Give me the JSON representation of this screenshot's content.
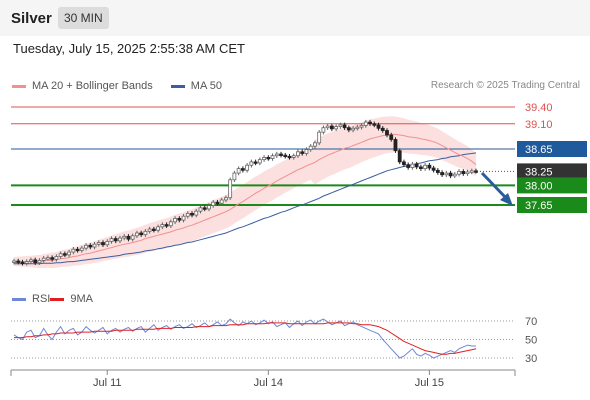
{
  "header": {
    "title": "Silver",
    "timeframe": "30 MIN"
  },
  "datetime": "Tuesday, July 15, 2025 2:55:38 AM CET",
  "legend": {
    "ma_bb_label": "MA 20 + Bollinger Bands",
    "ma50_label": "MA 50",
    "credit": "Research © 2025 Trading Central"
  },
  "rsi_legend": {
    "rsi_label": "RSI",
    "ma9_label": "9MA"
  },
  "colors": {
    "resistance": "#e05050",
    "pivot": "#1f5a9c",
    "support": "#1a8a1a",
    "current": "#333333",
    "arrow": "#2b5c9a",
    "ma20": "#f29090",
    "bb_fill": "#fbd4d4",
    "ma50": "#3a5e9e",
    "candle_up": "#666666",
    "candle_down": "#222222",
    "rsi": "#6e87d8",
    "rsi_ma": "#e02020"
  },
  "chart_data": {
    "type": "candlestick",
    "price_levels": [
      {
        "label": "39.40",
        "value": 39.4,
        "kind": "resistance"
      },
      {
        "label": "39.10",
        "value": 39.1,
        "kind": "resistance"
      },
      {
        "label": "38.65",
        "value": 38.65,
        "kind": "pivot"
      },
      {
        "label": "38.25",
        "value": 38.25,
        "kind": "current"
      },
      {
        "label": "38.00",
        "value": 38.0,
        "kind": "support"
      },
      {
        "label": "37.65",
        "value": 37.65,
        "kind": "support"
      }
    ],
    "x_labels": [
      {
        "label": "Jul 11",
        "bar": 22
      },
      {
        "label": "Jul 14",
        "bar": 60
      },
      {
        "label": "Jul 15",
        "bar": 98
      }
    ],
    "close": [
      36.65,
      36.63,
      36.61,
      36.64,
      36.67,
      36.62,
      36.66,
      36.7,
      36.71,
      36.68,
      36.73,
      36.78,
      36.76,
      36.81,
      36.86,
      36.84,
      36.88,
      36.93,
      36.9,
      36.95,
      36.98,
      36.94,
      37.0,
      37.05,
      37.01,
      37.06,
      37.09,
      37.04,
      37.1,
      37.15,
      37.12,
      37.18,
      37.22,
      37.2,
      37.26,
      37.3,
      37.28,
      37.35,
      37.41,
      37.38,
      37.45,
      37.5,
      37.47,
      37.54,
      37.6,
      37.58,
      37.64,
      37.7,
      37.68,
      37.74,
      37.78,
      38.1,
      38.22,
      38.3,
      38.27,
      38.36,
      38.42,
      38.4,
      38.46,
      38.5,
      38.48,
      38.53,
      38.56,
      38.54,
      38.52,
      38.5,
      38.53,
      38.6,
      38.57,
      38.64,
      38.7,
      38.76,
      38.95,
      39.03,
      39.06,
      39.01,
      39.05,
      39.08,
      39.03,
      38.99,
      39.02,
      39.04,
      39.07,
      39.13,
      39.1,
      39.08,
      39.02,
      38.98,
      38.9,
      38.82,
      38.62,
      38.42,
      38.37,
      38.32,
      38.38,
      38.33,
      38.3,
      38.36,
      38.31,
      38.27,
      38.23,
      38.19,
      38.22,
      38.17,
      38.2,
      38.25,
      38.21,
      38.24,
      38.26,
      38.25
    ],
    "ma20": [
      36.64,
      36.64,
      36.64,
      36.64,
      36.64,
      36.64,
      36.64,
      36.65,
      36.66,
      36.66,
      36.67,
      36.69,
      36.7,
      36.71,
      36.73,
      36.74,
      36.76,
      36.78,
      36.79,
      36.81,
      36.83,
      36.85,
      36.87,
      36.89,
      36.91,
      36.93,
      36.95,
      36.96,
      36.98,
      37.0,
      37.02,
      37.05,
      37.07,
      37.09,
      37.11,
      37.13,
      37.15,
      37.17,
      37.2,
      37.22,
      37.24,
      37.27,
      37.29,
      37.32,
      37.35,
      37.38,
      37.41,
      37.44,
      37.47,
      37.5,
      37.53,
      37.57,
      37.62,
      37.67,
      37.71,
      37.76,
      37.81,
      37.86,
      37.9,
      37.95,
      37.99,
      38.03,
      38.08,
      38.12,
      38.16,
      38.2,
      38.24,
      38.28,
      38.31,
      38.35,
      38.38,
      38.41,
      38.46,
      38.5,
      38.54,
      38.57,
      38.6,
      38.63,
      38.66,
      38.68,
      38.71,
      38.74,
      38.77,
      38.8,
      38.83,
      38.85,
      38.87,
      38.89,
      38.9,
      38.91,
      38.91,
      38.9,
      38.89,
      38.87,
      38.86,
      38.85,
      38.83,
      38.82,
      38.8,
      38.78,
      38.75,
      38.71,
      38.67,
      38.63,
      38.59,
      38.55,
      38.52,
      38.48,
      38.43,
      38.37
    ],
    "ma50": [
      36.6,
      36.6,
      36.6,
      36.6,
      36.6,
      36.6,
      36.6,
      36.61,
      36.61,
      36.61,
      36.62,
      36.62,
      36.63,
      36.64,
      36.64,
      36.65,
      36.66,
      36.67,
      36.68,
      36.69,
      36.7,
      36.71,
      36.72,
      36.73,
      36.74,
      36.75,
      36.77,
      36.78,
      36.79,
      36.8,
      36.81,
      36.83,
      36.84,
      36.85,
      36.87,
      36.88,
      36.9,
      36.91,
      36.93,
      36.94,
      36.96,
      36.98,
      36.99,
      37.01,
      37.03,
      37.05,
      37.07,
      37.09,
      37.11,
      37.13,
      37.15,
      37.18,
      37.21,
      37.24,
      37.26,
      37.29,
      37.32,
      37.35,
      37.38,
      37.41,
      37.43,
      37.46,
      37.49,
      37.52,
      37.54,
      37.57,
      37.6,
      37.63,
      37.65,
      37.68,
      37.71,
      37.74,
      37.77,
      37.81,
      37.84,
      37.87,
      37.9,
      37.93,
      37.96,
      37.99,
      38.02,
      38.05,
      38.08,
      38.11,
      38.14,
      38.17,
      38.2,
      38.23,
      38.26,
      38.28,
      38.3,
      38.32,
      38.34,
      38.35,
      38.37,
      38.39,
      38.4,
      38.42,
      38.44,
      38.45,
      38.46,
      38.48,
      38.49,
      38.51,
      38.52,
      38.53,
      38.55,
      38.56,
      38.57,
      38.58
    ],
    "rsi": {
      "ticks": [
        {
          "label": "70",
          "value": 70
        },
        {
          "label": "50",
          "value": 50
        },
        {
          "label": "30",
          "value": 30
        }
      ],
      "rsi": [
        55,
        52,
        50,
        58,
        60,
        52,
        54,
        62,
        55,
        50,
        58,
        64,
        56,
        60,
        62,
        55,
        58,
        64,
        60,
        57,
        60,
        63,
        56,
        60,
        62,
        58,
        61,
        63,
        59,
        62,
        64,
        58,
        62,
        66,
        60,
        63,
        65,
        61,
        64,
        66,
        62,
        64,
        67,
        63,
        65,
        68,
        64,
        66,
        69,
        65,
        67,
        72,
        68,
        65,
        69,
        67,
        70,
        66,
        68,
        71,
        67,
        69,
        64,
        66,
        68,
        63,
        67,
        70,
        65,
        69,
        71,
        67,
        70,
        72,
        69,
        66,
        68,
        70,
        65,
        67,
        69,
        66,
        64,
        62,
        60,
        58,
        56,
        50,
        45,
        40,
        35,
        30,
        32,
        36,
        40,
        34,
        32,
        35,
        33,
        30,
        32,
        34,
        36,
        38,
        36,
        40,
        42,
        44,
        43,
        43
      ],
      "ma9": [
        52,
        52,
        52,
        53,
        53,
        54,
        54,
        55,
        55,
        56,
        56,
        57,
        57,
        57,
        57,
        58,
        58,
        58,
        58,
        59,
        59,
        59,
        59,
        59,
        60,
        60,
        60,
        60,
        60,
        61,
        61,
        61,
        61,
        61,
        62,
        62,
        62,
        62,
        63,
        63,
        63,
        63,
        63,
        64,
        64,
        64,
        64,
        65,
        65,
        65,
        65,
        66,
        66,
        66,
        66,
        67,
        67,
        67,
        67,
        67,
        68,
        68,
        68,
        68,
        68,
        67,
        67,
        67,
        67,
        67,
        67,
        67,
        67,
        67,
        68,
        68,
        68,
        68,
        68,
        68,
        67,
        67,
        66,
        66,
        66,
        65,
        64,
        62,
        60,
        57,
        54,
        51,
        48,
        46,
        44,
        42,
        40,
        38,
        37,
        36,
        35,
        34,
        34,
        35,
        35,
        36,
        37,
        38,
        39,
        40
      ]
    }
  }
}
